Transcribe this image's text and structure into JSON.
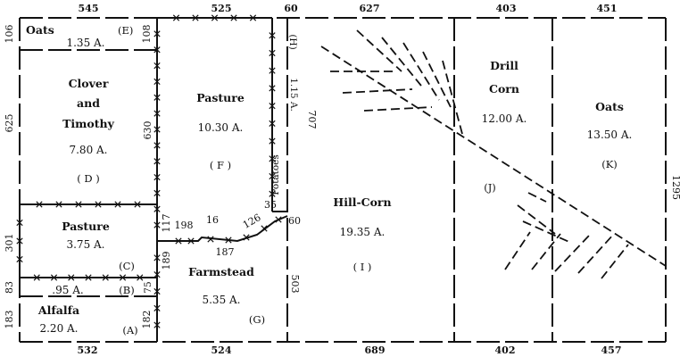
{
  "dimensions": {
    "top": [
      "545",
      "525",
      "60",
      "627",
      "403",
      "451"
    ],
    "bottom": [
      "532",
      "524",
      "689",
      "402",
      "457"
    ],
    "left": [
      "106",
      "625",
      "301",
      "83",
      "183"
    ],
    "right": "1295",
    "interior": {
      "d630": "630",
      "d108": "108",
      "d75": "75",
      "d182": "182",
      "d117": "117",
      "d189": "189",
      "d198": "198",
      "d16": "16",
      "d187": "187",
      "d126": "126",
      "d35": "35",
      "d60": "60",
      "d707": "707",
      "d503": "503"
    }
  },
  "fields": {
    "E": {
      "name": "Oats",
      "area": "1.35 A.",
      "letter": "(E)"
    },
    "D": {
      "name_lines": [
        "Clover",
        "and",
        "Timothy"
      ],
      "area": "7.80 A.",
      "letter": "( D )"
    },
    "C": {
      "name": "Pasture",
      "area": "3.75 A.",
      "letter": "(C)"
    },
    "B": {
      "area": ".95 A.",
      "letter": "(B)"
    },
    "A": {
      "name": "Alfalfa",
      "area": "2.20 A.",
      "letter": "(A)"
    },
    "F": {
      "name": "Pasture",
      "area": "10.30 A.",
      "letter": "( F )"
    },
    "G": {
      "name": "Farmstead",
      "area": "5.35 A.",
      "letter": "(G)"
    },
    "H": {
      "letter": "(H)",
      "area": "1.15 A.",
      "crop": "Potatoes"
    },
    "I": {
      "name": "Hill-Corn",
      "area": "19.35 A.",
      "letter": "( I )"
    },
    "J": {
      "name_lines": [
        "Drill",
        "Corn"
      ],
      "area": "12.00 A.",
      "letter": "(J)"
    },
    "K": {
      "name": "Oats",
      "area": "13.50 A.",
      "letter": "(K)"
    }
  }
}
